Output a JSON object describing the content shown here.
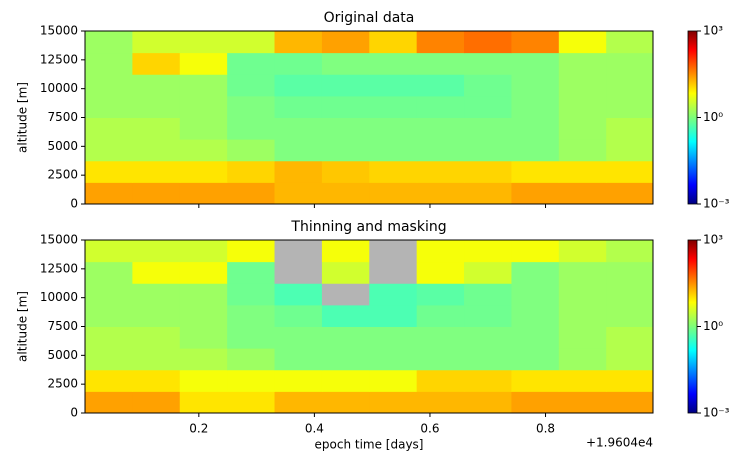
{
  "chart_data": [
    {
      "type": "heatmap",
      "title": "Original data",
      "ylabel": "altitude [m]",
      "xbins": [
        0.003,
        0.085,
        0.167,
        0.249,
        0.331,
        0.413,
        0.495,
        0.577,
        0.659,
        0.741,
        0.823,
        0.905,
        0.986
      ],
      "ybins": [
        0,
        1875,
        3750,
        5625,
        7500,
        9375,
        11250,
        13125,
        15000
      ],
      "values": [
        [
          20,
          20,
          20,
          20,
          15,
          15,
          15,
          15,
          15,
          20,
          20,
          20
        ],
        [
          8,
          8,
          8,
          10,
          15,
          12,
          10,
          10,
          10,
          8,
          8,
          8
        ],
        [
          2,
          2,
          2,
          1.5,
          1,
          1,
          1,
          1,
          1,
          1,
          1.5,
          2
        ],
        [
          2,
          2,
          1.5,
          1,
          1,
          1,
          1,
          1,
          1,
          1,
          1.5,
          2
        ],
        [
          1.5,
          1.5,
          1.5,
          1,
          0.8,
          0.8,
          0.8,
          0.8,
          0.8,
          1,
          1.5,
          1.5
        ],
        [
          1.5,
          1.5,
          1.5,
          0.8,
          0.6,
          0.6,
          0.6,
          0.6,
          0.8,
          1,
          1.5,
          1.5
        ],
        [
          1.5,
          10,
          5,
          0.8,
          0.8,
          1,
          1,
          1,
          1,
          1,
          1.5,
          1.5
        ],
        [
          1.5,
          3,
          3,
          3,
          15,
          20,
          10,
          30,
          40,
          30,
          5,
          2
        ]
      ],
      "xlim": [
        0.003,
        0.986
      ],
      "ylim": [
        0,
        15000
      ],
      "yticks": [
        0,
        2500,
        5000,
        7500,
        10000,
        12500,
        15000
      ],
      "cmap": "jet",
      "clim": [
        0.001,
        1000
      ],
      "clog": true,
      "cticks": [
        {
          "value": 1000,
          "label": "10³"
        },
        {
          "value": 1,
          "label": "10⁰"
        },
        {
          "value": 0.001,
          "label": "10⁻³"
        }
      ]
    },
    {
      "type": "heatmap",
      "title": "Thinning and masking",
      "ylabel": "altitude [m]",
      "xlabel": "epoch time [days]",
      "x_offset_label": "+1.9604e4",
      "xbins": [
        0.003,
        0.085,
        0.167,
        0.249,
        0.331,
        0.413,
        0.495,
        0.577,
        0.659,
        0.741,
        0.823,
        0.905,
        0.986
      ],
      "ybins": [
        0,
        1875,
        3750,
        5625,
        7500,
        9375,
        11250,
        13125,
        15000
      ],
      "values": [
        [
          20,
          20,
          8,
          8,
          15,
          15,
          15,
          15,
          15,
          20,
          20,
          20
        ],
        [
          8,
          8,
          5,
          5,
          5,
          5,
          5,
          10,
          10,
          8,
          8,
          8
        ],
        [
          2,
          2,
          2,
          1.5,
          1,
          1,
          1,
          1,
          1,
          1,
          1.5,
          2
        ],
        [
          2,
          2,
          1.5,
          1,
          1,
          1,
          1,
          1,
          1,
          1,
          1.5,
          2
        ],
        [
          1.5,
          1.5,
          1.5,
          1,
          0.8,
          0.5,
          0.5,
          0.8,
          0.8,
          1,
          1.5,
          1.5
        ],
        [
          1.5,
          1.5,
          1.5,
          0.8,
          0.5,
          null,
          0.5,
          0.6,
          0.8,
          1,
          1.5,
          1.5
        ],
        [
          1.5,
          5,
          5,
          0.8,
          null,
          3,
          null,
          5,
          3,
          1,
          1.5,
          1.5
        ],
        [
          3,
          3,
          3,
          5,
          null,
          5,
          null,
          5,
          5,
          5,
          3,
          2
        ]
      ],
      "xlim": [
        0.003,
        0.986
      ],
      "ylim": [
        0,
        15000
      ],
      "xticks": [
        0.2,
        0.4,
        0.6,
        0.8
      ],
      "yticks": [
        0,
        2500,
        5000,
        7500,
        10000,
        12500,
        15000
      ],
      "cmap": "jet",
      "clim": [
        0.001,
        1000
      ],
      "clog": true,
      "mask_color": "#b4b4b4",
      "cticks": [
        {
          "value": 1000,
          "label": "10³"
        },
        {
          "value": 1,
          "label": "10⁰"
        },
        {
          "value": 0.001,
          "label": "10⁻³"
        }
      ]
    }
  ]
}
